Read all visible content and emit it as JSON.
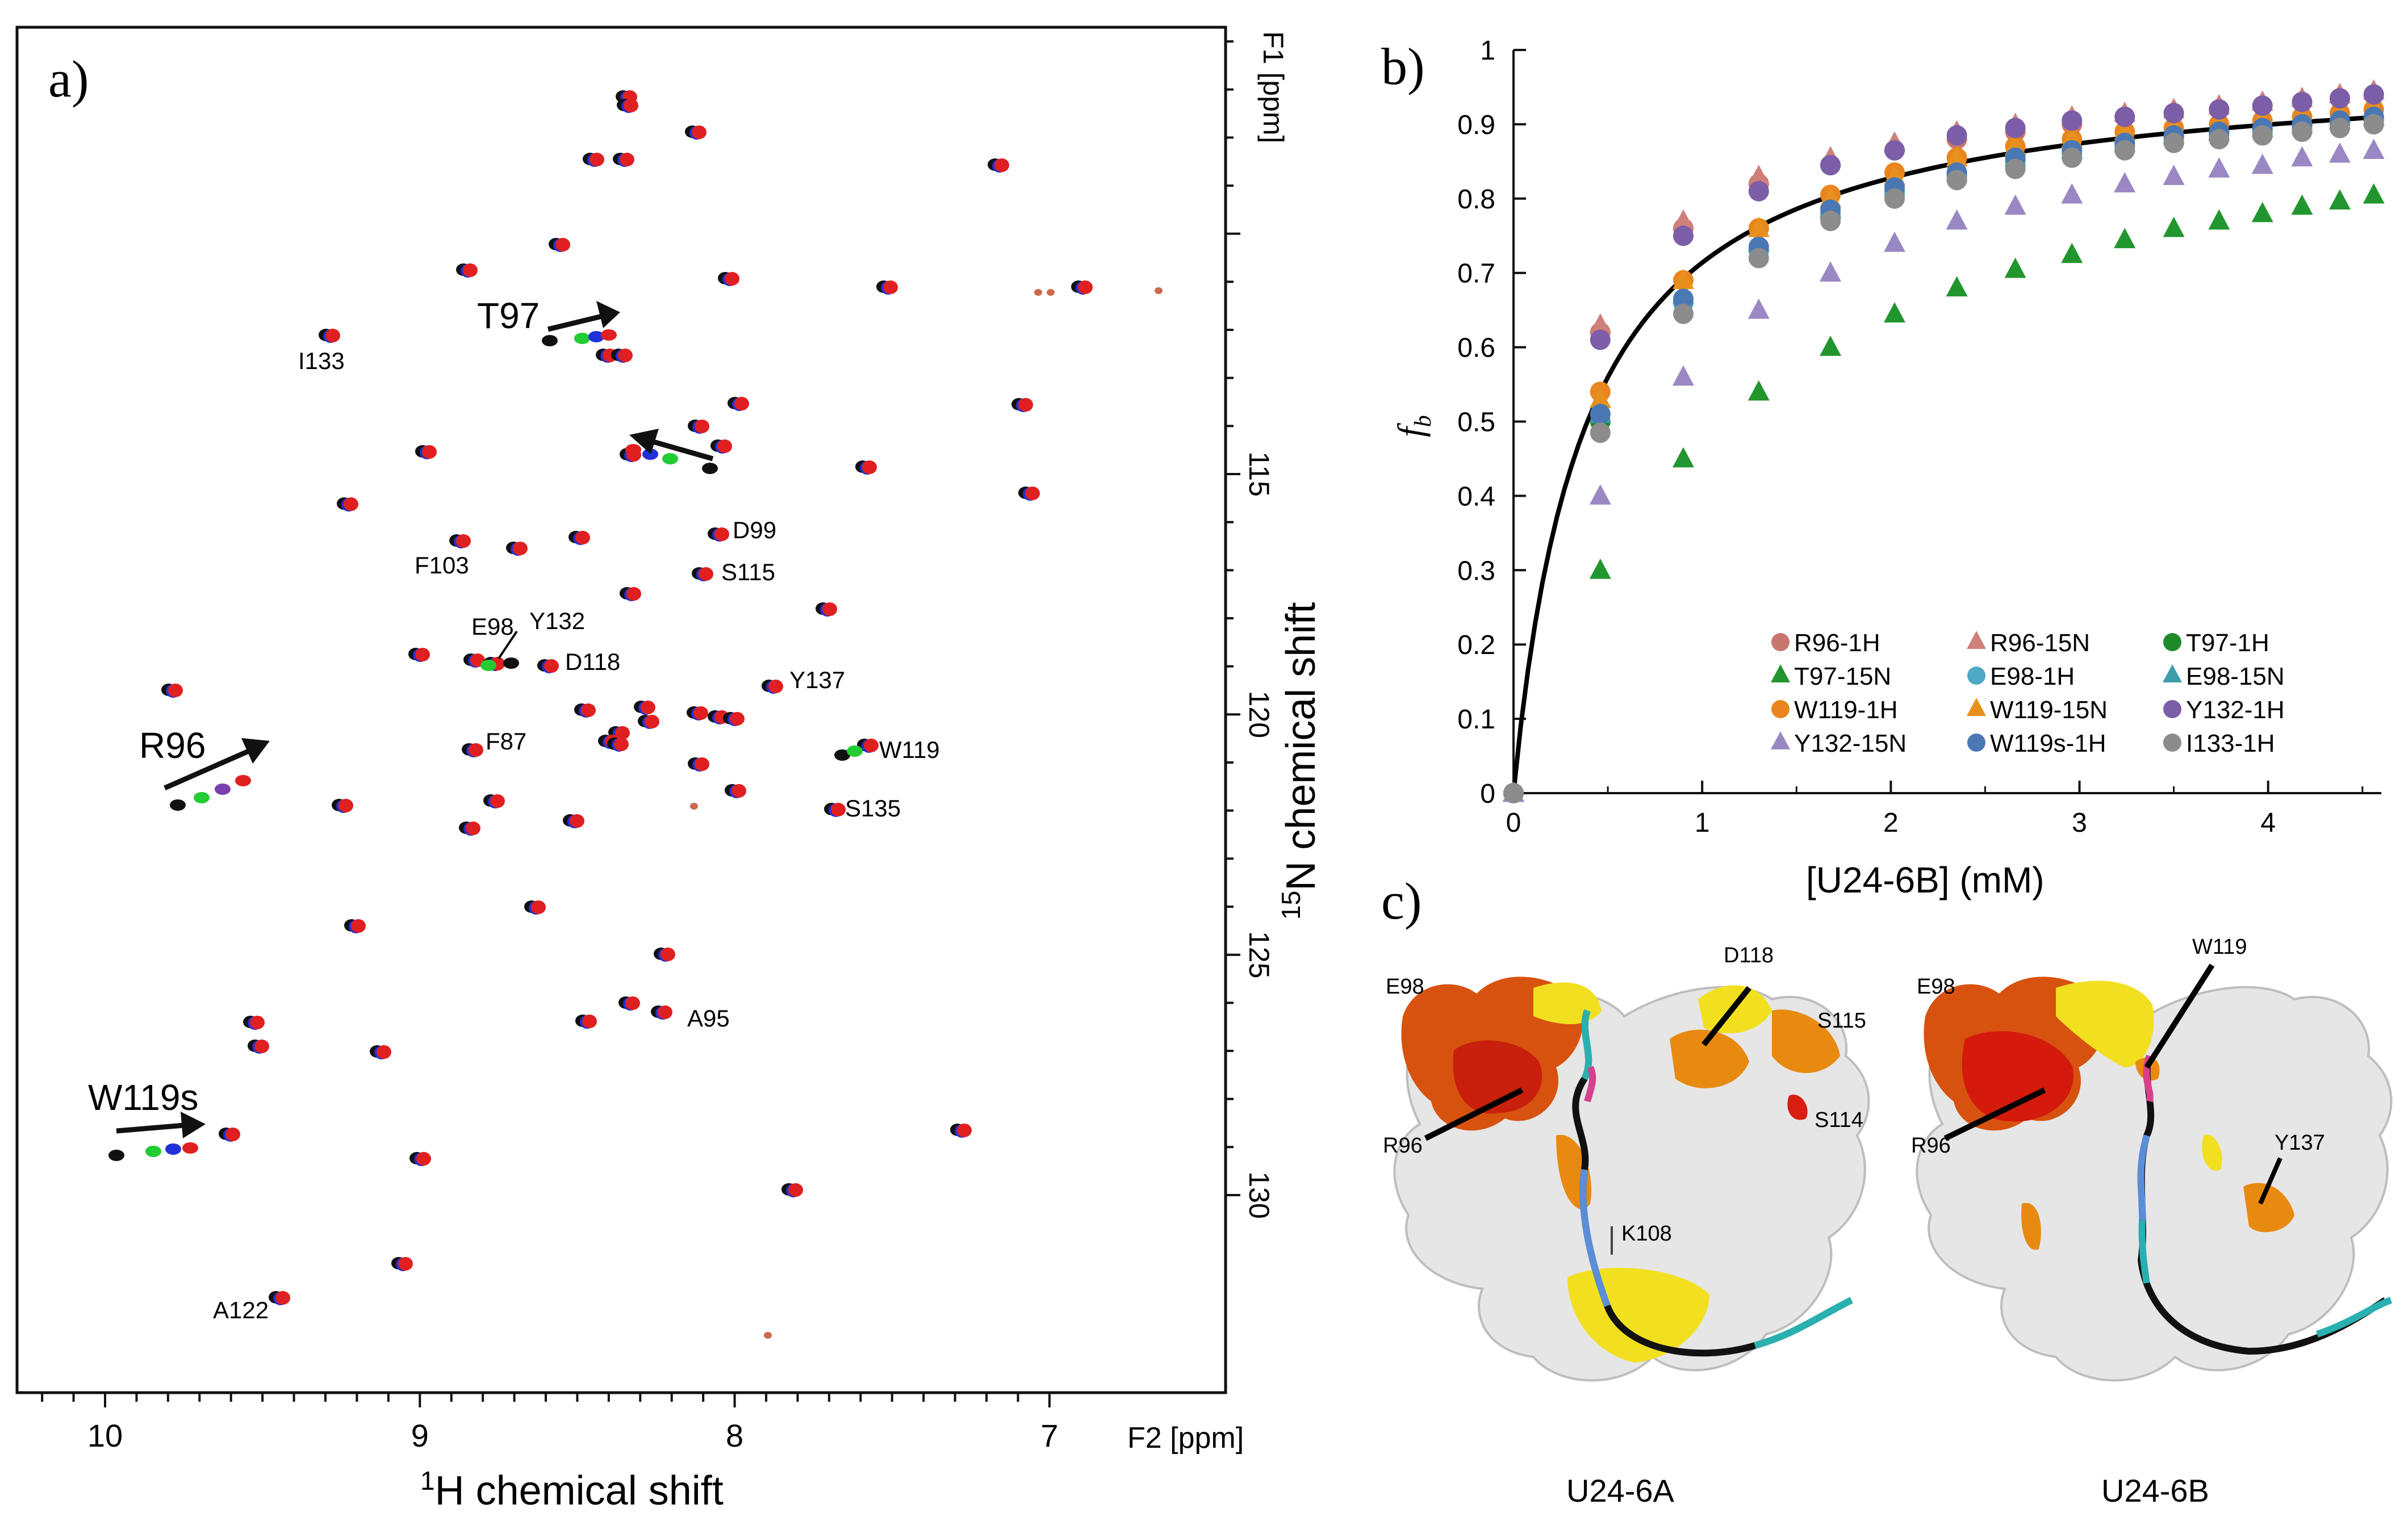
{
  "panel_a": {
    "label": "a)",
    "xlabel_sup": "1",
    "xlabel_text": "H chemical shift",
    "ylabel_sup": "15",
    "ylabel_text": "N chemical shift",
    "f1_unit": "F1 [ppm]",
    "f2_unit": "F2 [ppm]",
    "x_ticks": [
      "10",
      "9",
      "8",
      "7"
    ],
    "y_ticks": [
      "115",
      "120",
      "125",
      "130"
    ],
    "arrow_labels": [
      "T97",
      "R96",
      "W119s"
    ],
    "peak_labels": [
      "I133",
      "D99",
      "S115",
      "F103",
      "E98",
      "Y132",
      "D118",
      "Y137",
      "W119",
      "F87",
      "S135",
      "A95",
      "A122"
    ]
  },
  "chart_data": {
    "type": "scatter",
    "title": "",
    "panel_label": "b)",
    "xlabel": "[U24-6B] (mM)",
    "ylabel": "f",
    "ylabel_sub": "b",
    "xlim": [
      0,
      4.6
    ],
    "ylim": [
      0,
      1
    ],
    "x_ticks": [
      "0",
      "1",
      "2",
      "3",
      "4"
    ],
    "y_ticks": [
      "0",
      "0.1",
      "0.2",
      "0.3",
      "0.4",
      "0.5",
      "0.6",
      "0.7",
      "0.8",
      "0.9",
      "1"
    ],
    "grid": false,
    "legend_position": "bottom-right",
    "x": [
      0,
      0.46,
      0.9,
      1.3,
      1.68,
      2.02,
      2.35,
      2.66,
      2.96,
      3.24,
      3.5,
      3.74,
      3.97,
      4.18,
      4.38,
      4.56
    ],
    "series": [
      {
        "name": "R96-1H",
        "color": "#c8766e",
        "marker": "circle",
        "values": [
          0,
          0.62,
          0.76,
          0.82,
          0.845,
          0.865,
          0.88,
          0.89,
          0.9,
          0.91,
          0.915,
          0.92,
          0.925,
          0.93,
          0.935,
          0.94
        ]
      },
      {
        "name": "R96-15N",
        "color": "#d0807a",
        "marker": "triangle",
        "values": [
          0,
          0.63,
          0.77,
          0.83,
          0.855,
          0.875,
          0.89,
          0.9,
          0.91,
          0.915,
          0.92,
          0.925,
          0.93,
          0.935,
          0.94,
          0.945
        ]
      },
      {
        "name": "T97-1H",
        "color": "#1e8a2a",
        "marker": "circle",
        "values": [
          0,
          0.5,
          0.66,
          0.73,
          0.775,
          0.81,
          0.83,
          0.85,
          0.86,
          0.87,
          0.88,
          0.885,
          0.89,
          0.895,
          0.9,
          0.905
        ]
      },
      {
        "name": "T97-15N",
        "color": "#22962e",
        "marker": "triangle",
        "values": [
          0,
          0.3,
          0.45,
          0.54,
          0.6,
          0.645,
          0.68,
          0.705,
          0.725,
          0.745,
          0.76,
          0.77,
          0.78,
          0.79,
          0.797,
          0.805
        ]
      },
      {
        "name": "E98-1H",
        "color": "#4fa8c4",
        "marker": "circle",
        "values": [
          0,
          0.51,
          0.66,
          0.73,
          0.78,
          0.81,
          0.83,
          0.85,
          0.86,
          0.87,
          0.88,
          0.885,
          0.89,
          0.895,
          0.9,
          0.905
        ]
      },
      {
        "name": "E98-15N",
        "color": "#3d9eaa",
        "marker": "triangle",
        "values": [
          0,
          0.51,
          0.67,
          0.74,
          0.785,
          0.815,
          0.835,
          0.855,
          0.865,
          0.875,
          0.885,
          0.89,
          0.895,
          0.9,
          0.905,
          0.91
        ]
      },
      {
        "name": "W119-1H",
        "color": "#e8851e",
        "marker": "circle",
        "values": [
          0,
          0.54,
          0.69,
          0.76,
          0.805,
          0.835,
          0.855,
          0.87,
          0.88,
          0.89,
          0.895,
          0.9,
          0.905,
          0.91,
          0.915,
          0.92
        ]
      },
      {
        "name": "W119-15N",
        "color": "#e8901e",
        "marker": "triangle",
        "values": [
          0,
          0.53,
          0.69,
          0.76,
          0.8,
          0.83,
          0.855,
          0.87,
          0.88,
          0.89,
          0.895,
          0.9,
          0.905,
          0.91,
          0.915,
          0.92
        ]
      },
      {
        "name": "Y132-1H",
        "color": "#7b5ea7",
        "marker": "circle",
        "values": [
          0,
          0.61,
          0.75,
          0.81,
          0.845,
          0.865,
          0.885,
          0.895,
          0.905,
          0.91,
          0.915,
          0.92,
          0.925,
          0.93,
          0.935,
          0.94
        ]
      },
      {
        "name": "Y132-15N",
        "color": "#9a88c4",
        "marker": "triangle",
        "values": [
          0,
          0.4,
          0.56,
          0.65,
          0.7,
          0.74,
          0.77,
          0.79,
          0.805,
          0.82,
          0.83,
          0.84,
          0.845,
          0.855,
          0.86,
          0.865
        ]
      },
      {
        "name": "W119s-1H",
        "color": "#4a78b4",
        "marker": "circle",
        "values": [
          0,
          0.51,
          0.665,
          0.735,
          0.785,
          0.815,
          0.835,
          0.855,
          0.865,
          0.875,
          0.885,
          0.89,
          0.895,
          0.9,
          0.905,
          0.91
        ]
      },
      {
        "name": "I133-1H",
        "color": "#8c8c8c",
        "marker": "circle",
        "values": [
          0,
          0.485,
          0.645,
          0.72,
          0.77,
          0.8,
          0.825,
          0.84,
          0.855,
          0.865,
          0.875,
          0.88,
          0.885,
          0.89,
          0.895,
          0.9
        ]
      }
    ]
  },
  "panel_c": {
    "label": "c)",
    "left_title": "U24-6A",
    "right_title": "U24-6B",
    "left_labels": [
      "E98",
      "D118",
      "S115",
      "R96",
      "S114",
      "K108"
    ],
    "right_labels": [
      "E98",
      "W119",
      "R96",
      "Y137"
    ]
  }
}
